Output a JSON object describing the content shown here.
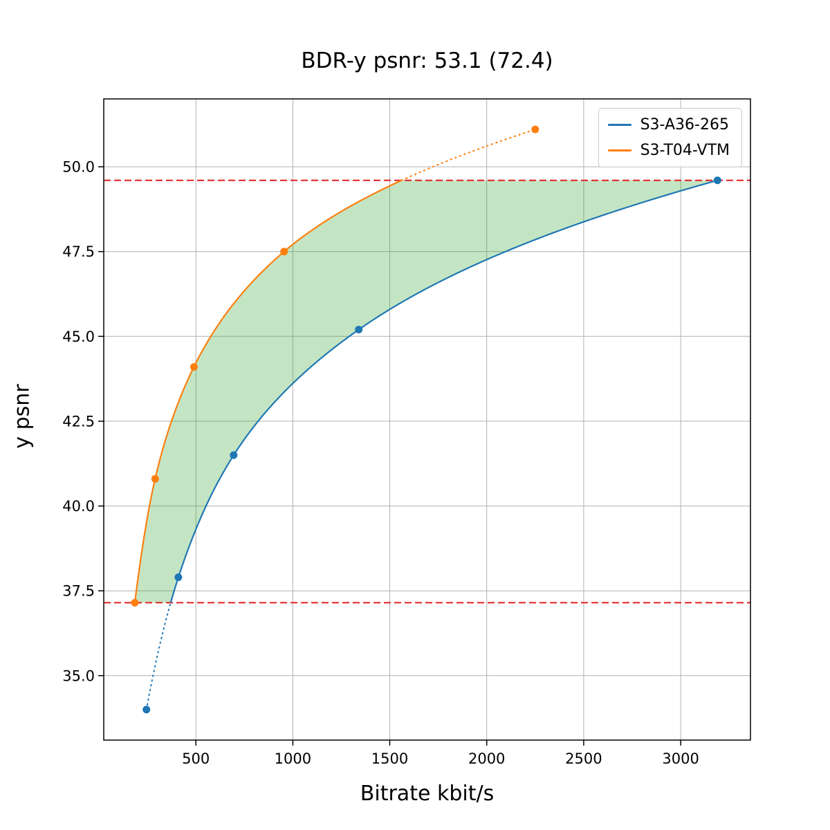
{
  "chart_data": {
    "type": "line",
    "title": "BDR-y psnr: 53.1 (72.4)",
    "xlabel": "Bitrate kbit/s",
    "ylabel": "y psnr",
    "xlim": [
      25,
      3360
    ],
    "ylim": [
      33.1,
      52.0
    ],
    "grid": true,
    "legend_position": "upper right",
    "xticks": {
      "values": [
        500,
        1000,
        1500,
        2000,
        2500,
        3000
      ],
      "labels": [
        "500",
        "1000",
        "1500",
        "2000",
        "2500",
        "3000"
      ]
    },
    "yticks": {
      "values": [
        35.0,
        37.5,
        40.0,
        42.5,
        45.0,
        47.5,
        50.0
      ],
      "labels": [
        "35.0",
        "37.5",
        "40.0",
        "42.5",
        "45.0",
        "47.5",
        "50.0"
      ]
    },
    "series": [
      {
        "name": "S3-A36-265",
        "color": "#1f77b4",
        "points": [
          [
            245,
            34.0
          ],
          [
            410,
            37.9
          ],
          [
            695,
            41.5
          ],
          [
            1340,
            45.2
          ],
          [
            3190,
            49.6
          ]
        ]
      },
      {
        "name": "S3-T04-VTM",
        "color": "#ff7f0e",
        "points": [
          [
            185,
            37.15
          ],
          [
            290,
            40.8
          ],
          [
            490,
            44.1
          ],
          [
            955,
            47.5
          ],
          [
            2250,
            51.1
          ]
        ]
      }
    ],
    "overlap_lines": {
      "style": "dashed",
      "color": "#e02020",
      "upper": 49.6,
      "lower": 37.15
    },
    "fill_between": {
      "color": "#2ca02c",
      "opacity": 0.28
    }
  }
}
